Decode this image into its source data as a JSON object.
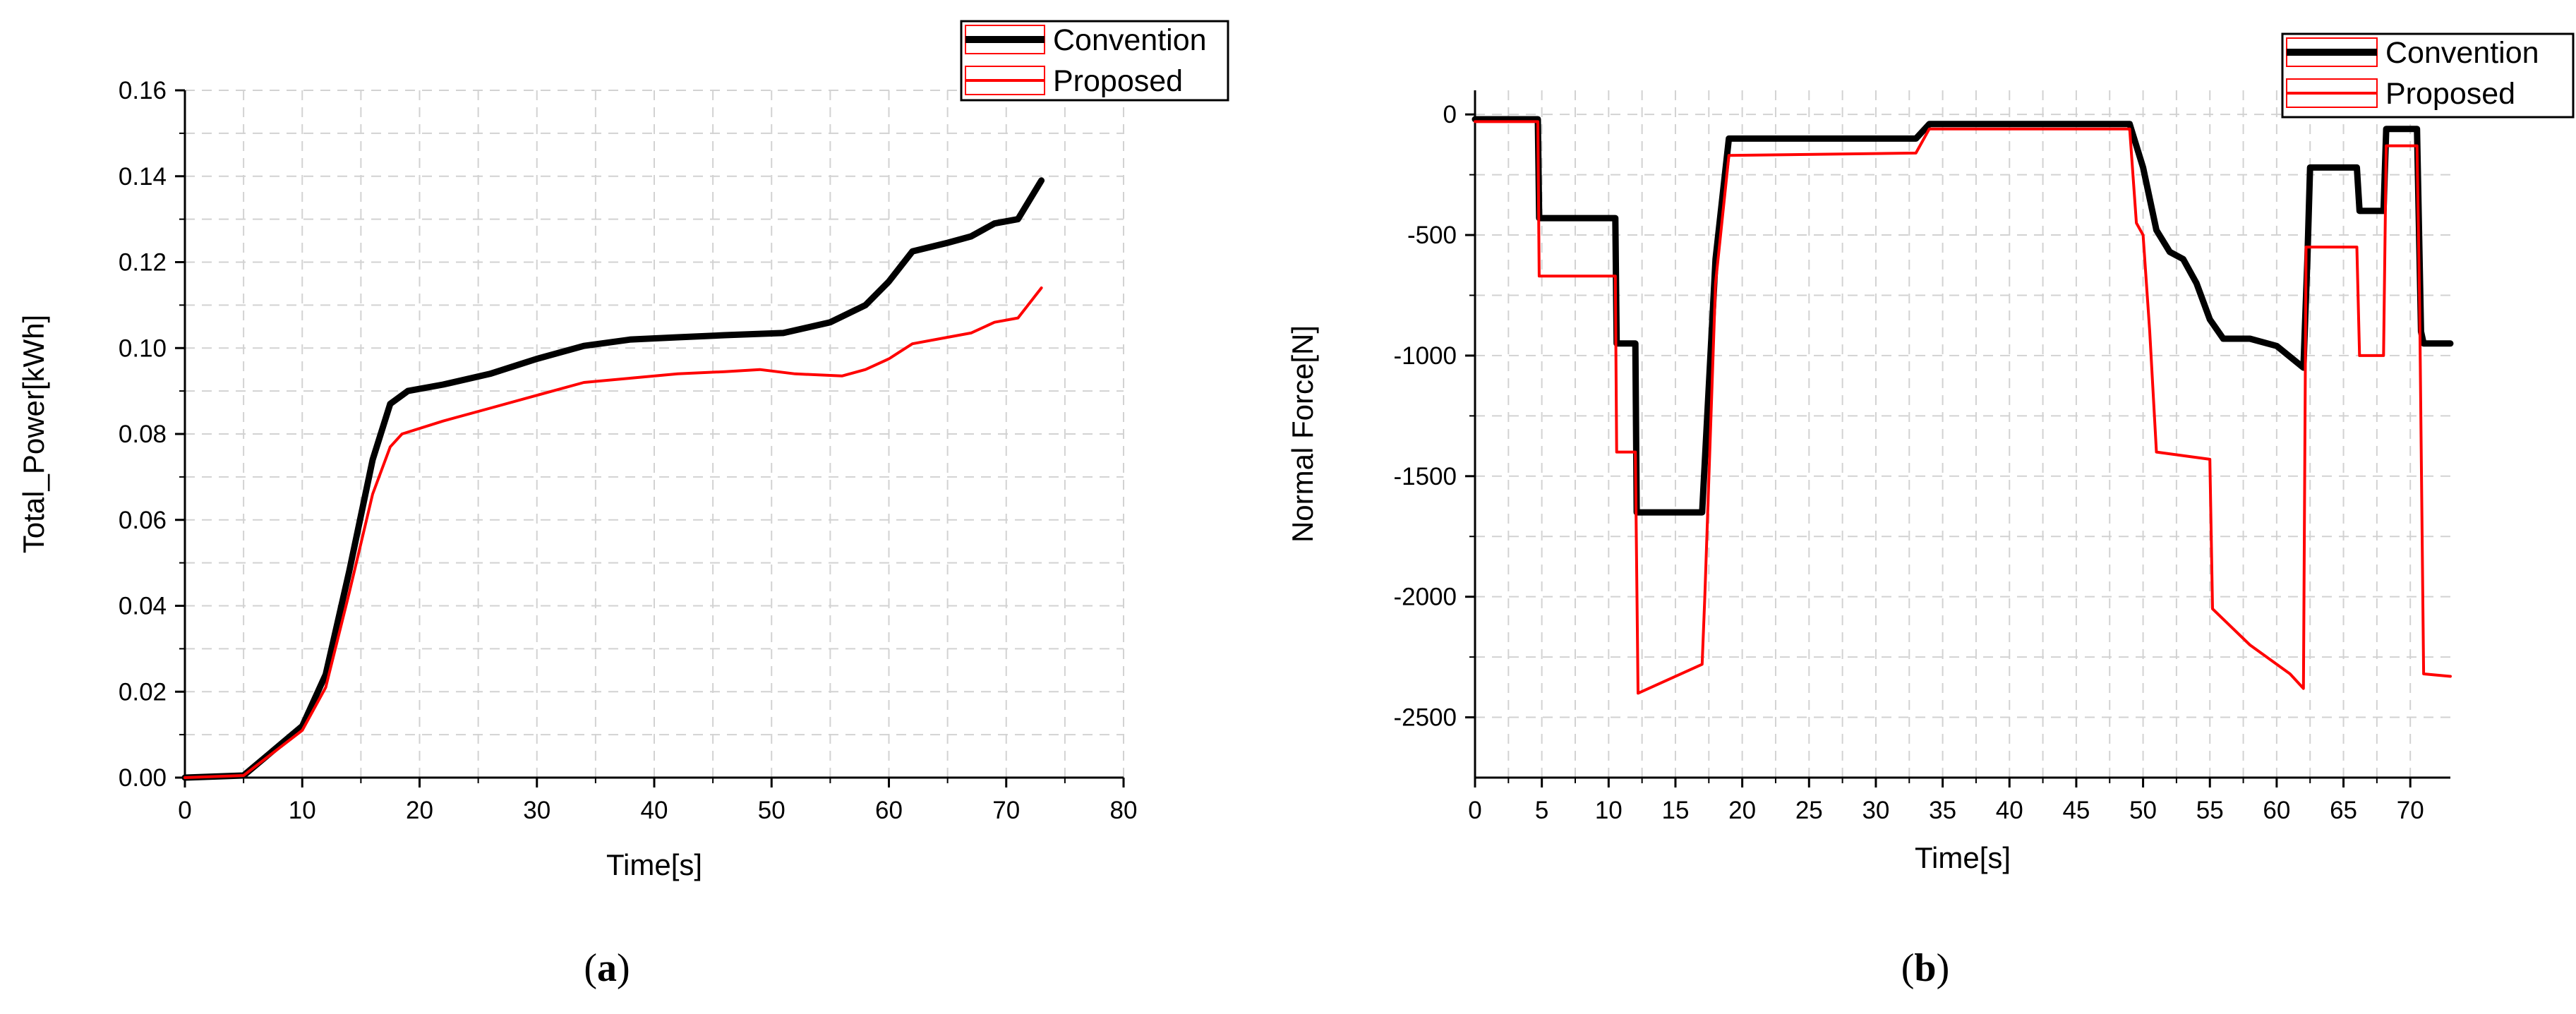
{
  "chart_data": [
    {
      "type": "line",
      "panel_label": "a",
      "xlabel": "Time[s]",
      "ylabel": "Total_Power[kWh]",
      "xlim": [
        0,
        80
      ],
      "ylim": [
        0,
        0.16
      ],
      "xticks": [
        0,
        10,
        20,
        30,
        40,
        50,
        60,
        70,
        80
      ],
      "yticks": [
        "0.00",
        "0.02",
        "0.04",
        "0.06",
        "0.08",
        "0.10",
        "0.12",
        "0.14",
        "0.16"
      ],
      "grid": true,
      "legend_position": "top-right",
      "series": [
        {
          "name": "Convention",
          "color": "#000000",
          "x": [
            0,
            5,
            10,
            12,
            14,
            16,
            17.5,
            19,
            22,
            26,
            30,
            34,
            38,
            42,
            46,
            51,
            55,
            58,
            60,
            62,
            65,
            67,
            69,
            71,
            73
          ],
          "y": [
            0,
            0.0005,
            0.012,
            0.024,
            0.048,
            0.074,
            0.087,
            0.09,
            0.0915,
            0.094,
            0.0975,
            0.1005,
            0.102,
            0.1025,
            0.103,
            0.1035,
            0.106,
            0.11,
            0.1155,
            0.1225,
            0.1245,
            0.126,
            0.129,
            0.13,
            0.139
          ]
        },
        {
          "name": "Proposed",
          "color": "#ff0000",
          "x": [
            0,
            5,
            10,
            12,
            14,
            16,
            17.5,
            18.5,
            22,
            26,
            30,
            34,
            38,
            42,
            46,
            49,
            52,
            56,
            58,
            60,
            62,
            65,
            67,
            69,
            71,
            73
          ],
          "y": [
            0,
            0.0005,
            0.011,
            0.021,
            0.043,
            0.066,
            0.077,
            0.08,
            0.083,
            0.086,
            0.089,
            0.092,
            0.093,
            0.094,
            0.0945,
            0.095,
            0.094,
            0.0935,
            0.095,
            0.0975,
            0.101,
            0.1025,
            0.1035,
            0.106,
            0.107,
            0.114
          ]
        }
      ]
    },
    {
      "type": "line",
      "panel_label": "b",
      "xlabel": "Time[s]",
      "ylabel": "Normal Force[N]",
      "xlim": [
        0,
        73
      ],
      "ylim": [
        -2750,
        100
      ],
      "xticks": [
        0,
        5,
        10,
        15,
        20,
        25,
        30,
        35,
        40,
        45,
        50,
        55,
        60,
        65,
        70
      ],
      "yticks": [
        0,
        -500,
        -1000,
        -1500,
        -2000,
        -2500
      ],
      "grid": true,
      "legend_position": "top-right",
      "series": [
        {
          "name": "Convention",
          "color": "#000000",
          "x": [
            0,
            4.7,
            4.8,
            8,
            10.5,
            10.6,
            12,
            12.1,
            17,
            18,
            19,
            33,
            34,
            49,
            50,
            51,
            52,
            53,
            54,
            55,
            56,
            58,
            60,
            62,
            62.3,
            62.5,
            64,
            66,
            66.2,
            68,
            68.2,
            69,
            69.8,
            70.5,
            70.8,
            71,
            73
          ],
          "y": [
            -20,
            -20,
            -430,
            -430,
            -430,
            -950,
            -950,
            -1650,
            -1650,
            -600,
            -100,
            -100,
            -40,
            -40,
            -220,
            -480,
            -570,
            -600,
            -700,
            -850,
            -930,
            -930,
            -960,
            -1050,
            -600,
            -220,
            -220,
            -220,
            -400,
            -400,
            -60,
            -60,
            -60,
            -60,
            -900,
            -950,
            -950
          ]
        },
        {
          "name": "Proposed",
          "color": "#ff0000",
          "x": [
            0,
            4.7,
            4.8,
            10.5,
            10.6,
            12,
            12.2,
            17,
            17.2,
            18,
            19,
            33,
            34,
            49,
            49.5,
            50,
            50.5,
            51,
            55,
            55.2,
            58,
            61,
            62,
            62.2,
            64,
            66,
            66.2,
            68,
            68.2,
            69,
            69.8,
            70.5,
            70.7,
            71,
            73
          ],
          "y": [
            -30,
            -30,
            -670,
            -670,
            -1400,
            -1400,
            -2400,
            -2280,
            -2000,
            -700,
            -170,
            -160,
            -60,
            -60,
            -450,
            -500,
            -900,
            -1400,
            -1430,
            -2050,
            -2200,
            -2320,
            -2380,
            -550,
            -550,
            -550,
            -1000,
            -1000,
            -130,
            -130,
            -130,
            -130,
            -800,
            -2320,
            -2330
          ]
        }
      ]
    }
  ]
}
